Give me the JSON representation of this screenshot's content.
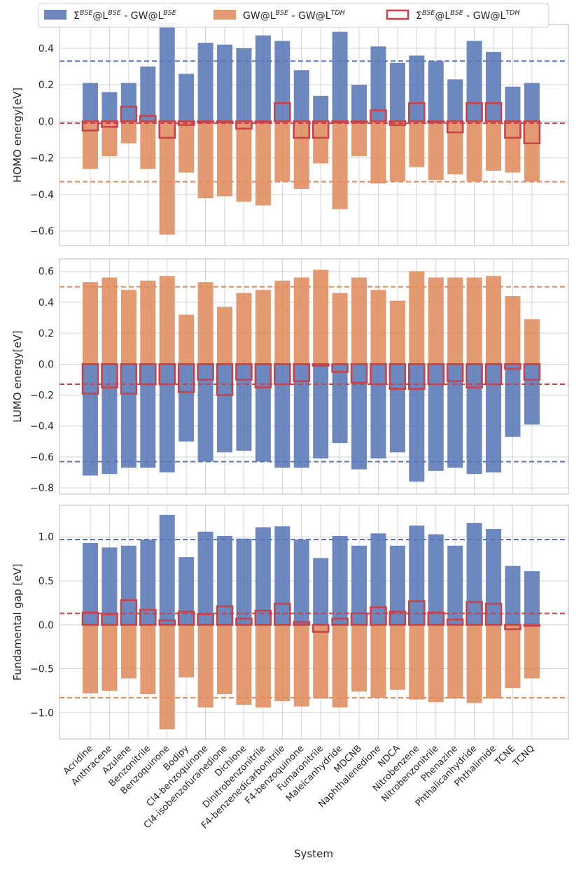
{
  "chart_data": {
    "type": "bar",
    "xlabel": "System",
    "categories": [
      "Acridine",
      "Anthracene",
      "Azulene",
      "Benzonitrile",
      "Benzoquinone",
      "Bodipy",
      "Cl4-benzoquinone",
      "Cl4-isobenzofuranedione",
      "Dichlone",
      "Dinitrobenzonitrile",
      "F4-benzenedicarbonitrile",
      "F4-benzoquinone",
      "Fumaronitrile",
      "Maleicanhydride",
      "MDCNB",
      "Naphthalenedione",
      "NDCA",
      "Nitrobenzene",
      "Nitrobenzonitrile",
      "Phenazine",
      "Phthalicanhydride",
      "Phthalimide",
      "TCNE",
      "TCNQ"
    ],
    "legend": {
      "position": "top",
      "entries": [
        {
          "label": "Σ^BSE@L^BSE - GW@L^BSE",
          "color": "#5977b6",
          "style": "filled"
        },
        {
          "label": "GW@L^BSE - GW@L^TDH",
          "color": "#e08c5d",
          "style": "filled"
        },
        {
          "label": "Σ^BSE@L^BSE - GW@L^TDH",
          "color": "#c8434b",
          "style": "outline"
        }
      ]
    },
    "panels": [
      {
        "ylabel": "HOMO energy[eV]",
        "ylim": [
          -0.68,
          0.53
        ],
        "yticks": [
          -0.6,
          -0.4,
          -0.2,
          0.0,
          0.2,
          0.4
        ],
        "ytick_labels": [
          "−0.6",
          "−0.4",
          "−0.2",
          "0.0",
          "0.2",
          "0.4"
        ],
        "series": [
          {
            "name": "Σ^BSE@L^BSE - GW@L^BSE",
            "values": [
              0.21,
              0.16,
              0.21,
              0.3,
              0.54,
              0.26,
              0.43,
              0.42,
              0.4,
              0.47,
              0.44,
              0.28,
              0.14,
              0.49,
              0.2,
              0.41,
              0.32,
              0.36,
              0.33,
              0.23,
              0.44,
              0.38,
              0.19,
              0.21
            ],
            "mean": 0.33
          },
          {
            "name": "GW@L^BSE - GW@L^TDH",
            "values": [
              -0.26,
              -0.19,
              -0.12,
              -0.26,
              -0.62,
              -0.28,
              -0.42,
              -0.41,
              -0.44,
              -0.46,
              -0.33,
              -0.37,
              -0.23,
              -0.48,
              -0.19,
              -0.34,
              -0.33,
              -0.25,
              -0.32,
              -0.29,
              -0.33,
              -0.27,
              -0.28,
              -0.33
            ],
            "mean": -0.33
          },
          {
            "name": "Σ^BSE@L^BSE - GW@L^TDH",
            "values": [
              -0.05,
              -0.03,
              0.08,
              0.03,
              -0.09,
              -0.02,
              0.0,
              0.0,
              -0.04,
              0.0,
              0.1,
              -0.09,
              -0.09,
              0.0,
              0.0,
              0.06,
              -0.02,
              0.1,
              0.0,
              -0.06,
              0.1,
              0.1,
              -0.09,
              -0.12
            ],
            "mean": -0.01
          }
        ]
      },
      {
        "ylabel": "LUMO energy[eV]",
        "ylim": [
          -0.84,
          0.68
        ],
        "yticks": [
          -0.8,
          -0.6,
          -0.4,
          -0.2,
          0.0,
          0.2,
          0.4,
          0.6
        ],
        "ytick_labels": [
          "−0.8",
          "−0.6",
          "−0.4",
          "−0.2",
          "0.0",
          "0.2",
          "0.4",
          "0.6"
        ],
        "series": [
          {
            "name": "Σ^BSE@L^BSE - GW@L^BSE",
            "values": [
              -0.72,
              -0.71,
              -0.67,
              -0.67,
              -0.7,
              -0.5,
              -0.63,
              -0.57,
              -0.56,
              -0.63,
              -0.67,
              -0.67,
              -0.61,
              -0.51,
              -0.68,
              -0.61,
              -0.57,
              -0.76,
              -0.69,
              -0.67,
              -0.71,
              -0.7,
              -0.47,
              -0.39
            ],
            "mean": -0.63
          },
          {
            "name": "GW@L^BSE - GW@L^TDH",
            "values": [
              0.53,
              0.56,
              0.48,
              0.54,
              0.57,
              0.32,
              0.53,
              0.37,
              0.46,
              0.48,
              0.54,
              0.56,
              0.61,
              0.46,
              0.56,
              0.48,
              0.41,
              0.6,
              0.56,
              0.56,
              0.56,
              0.57,
              0.44,
              0.29
            ],
            "mean": 0.5
          },
          {
            "name": "Σ^BSE@L^BSE - GW@L^TDH",
            "values": [
              -0.19,
              -0.15,
              -0.19,
              -0.13,
              -0.13,
              -0.18,
              -0.1,
              -0.2,
              -0.1,
              -0.15,
              -0.13,
              -0.11,
              -0.01,
              -0.05,
              -0.12,
              -0.13,
              -0.16,
              -0.16,
              -0.13,
              -0.11,
              -0.15,
              -0.13,
              -0.03,
              -0.1
            ],
            "mean": -0.13
          }
        ]
      },
      {
        "ylabel": "Fundamental gap [eV]",
        "ylim": [
          -1.3,
          1.36
        ],
        "yticks": [
          -1.0,
          -0.5,
          0.0,
          0.5,
          1.0
        ],
        "ytick_labels": [
          "−1.0",
          "−0.5",
          "0.0",
          "0.5",
          "1.0"
        ],
        "series": [
          {
            "name": "Σ^BSE@L^BSE - GW@L^BSE",
            "values": [
              0.93,
              0.88,
              0.9,
              0.97,
              1.25,
              0.77,
              1.06,
              1.01,
              0.98,
              1.11,
              1.12,
              0.97,
              0.76,
              1.01,
              0.9,
              1.04,
              0.9,
              1.13,
              1.03,
              0.9,
              1.16,
              1.09,
              0.67,
              0.61
            ],
            "mean": 0.97
          },
          {
            "name": "GW@L^BSE - GW@L^TDH",
            "values": [
              -0.78,
              -0.75,
              -0.61,
              -0.79,
              -1.19,
              -0.6,
              -0.94,
              -0.79,
              -0.91,
              -0.94,
              -0.87,
              -0.93,
              -0.84,
              -0.94,
              -0.76,
              -0.83,
              -0.74,
              -0.85,
              -0.88,
              -0.84,
              -0.89,
              -0.84,
              -0.72,
              -0.61
            ],
            "mean": -0.83
          },
          {
            "name": "Σ^BSE@L^BSE - GW@L^TDH",
            "values": [
              0.14,
              0.12,
              0.28,
              0.17,
              0.05,
              0.15,
              0.12,
              0.21,
              0.07,
              0.16,
              0.24,
              0.03,
              -0.08,
              0.07,
              0.13,
              0.2,
              0.15,
              0.27,
              0.14,
              0.06,
              0.26,
              0.24,
              -0.05,
              0.0
            ],
            "mean": 0.13
          }
        ]
      }
    ]
  }
}
